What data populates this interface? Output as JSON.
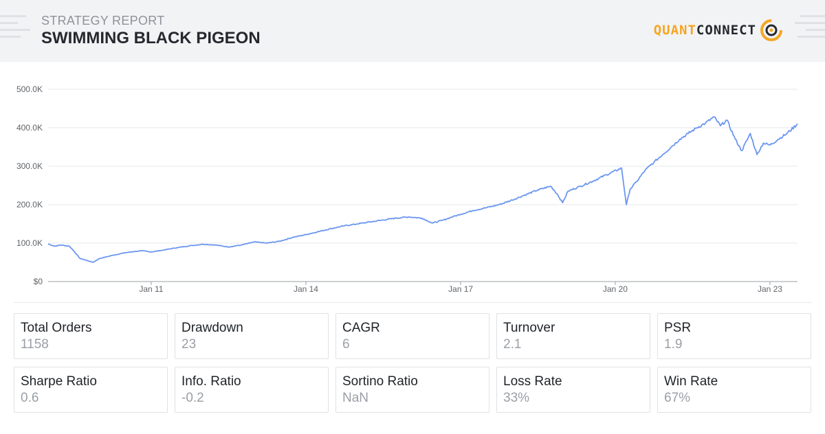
{
  "header": {
    "subtitle": "STRATEGY REPORT",
    "title": "SWIMMING BLACK PIGEON",
    "logo_quant": "QUANT",
    "logo_connect": "CONNECT",
    "accent_color": "#f5a623"
  },
  "chart_data": {
    "type": "line",
    "title": "",
    "xlabel": "",
    "ylabel": "",
    "x_range": [
      "2009-01-01",
      "2023-07-15"
    ],
    "ylim": [
      0,
      500000
    ],
    "y_ticks": [
      {
        "value": 0,
        "label": "$0"
      },
      {
        "value": 100000,
        "label": "100.0K"
      },
      {
        "value": 200000,
        "label": "200.0K"
      },
      {
        "value": 300000,
        "label": "300.0K"
      },
      {
        "value": 400000,
        "label": "400.0K"
      },
      {
        "value": 500000,
        "label": "500.0K"
      }
    ],
    "x_ticks": [
      {
        "date": "2011-01-01",
        "label": "Jan 11"
      },
      {
        "date": "2014-01-01",
        "label": "Jan 14"
      },
      {
        "date": "2017-01-01",
        "label": "Jan 17"
      },
      {
        "date": "2020-01-01",
        "label": "Jan 20"
      },
      {
        "date": "2023-01-01",
        "label": "Jan 23"
      }
    ],
    "grid": true,
    "series": [
      {
        "color": "#6b96ef",
        "points": [
          [
            "2009-01-01",
            98000
          ],
          [
            "2009-02-15",
            92000
          ],
          [
            "2009-04-01",
            95000
          ],
          [
            "2009-06-01",
            92000
          ],
          [
            "2009-07-01",
            80000
          ],
          [
            "2009-08-15",
            60000
          ],
          [
            "2009-10-01",
            55000
          ],
          [
            "2009-11-15",
            50000
          ],
          [
            "2010-01-01",
            60000
          ],
          [
            "2010-04-01",
            68000
          ],
          [
            "2010-07-01",
            75000
          ],
          [
            "2010-09-01",
            78000
          ],
          [
            "2010-11-01",
            80000
          ],
          [
            "2011-01-01",
            77000
          ],
          [
            "2011-04-01",
            82000
          ],
          [
            "2011-07-01",
            88000
          ],
          [
            "2011-10-01",
            93000
          ],
          [
            "2012-01-01",
            97000
          ],
          [
            "2012-04-01",
            95000
          ],
          [
            "2012-07-01",
            90000
          ],
          [
            "2012-10-01",
            95000
          ],
          [
            "2013-01-01",
            103000
          ],
          [
            "2013-04-01",
            100000
          ],
          [
            "2013-07-01",
            105000
          ],
          [
            "2013-10-01",
            115000
          ],
          [
            "2014-01-01",
            122000
          ],
          [
            "2014-04-01",
            130000
          ],
          [
            "2014-07-01",
            138000
          ],
          [
            "2014-10-01",
            145000
          ],
          [
            "2015-01-01",
            150000
          ],
          [
            "2015-04-01",
            155000
          ],
          [
            "2015-07-01",
            160000
          ],
          [
            "2015-10-01",
            165000
          ],
          [
            "2016-01-01",
            168000
          ],
          [
            "2016-04-01",
            165000
          ],
          [
            "2016-06-15",
            152000
          ],
          [
            "2016-09-01",
            160000
          ],
          [
            "2016-11-01",
            168000
          ],
          [
            "2017-01-01",
            175000
          ],
          [
            "2017-04-01",
            185000
          ],
          [
            "2017-07-01",
            192000
          ],
          [
            "2017-10-01",
            200000
          ],
          [
            "2018-01-01",
            212000
          ],
          [
            "2018-04-01",
            225000
          ],
          [
            "2018-07-01",
            238000
          ],
          [
            "2018-10-01",
            248000
          ],
          [
            "2018-11-15",
            228000
          ],
          [
            "2018-12-24",
            205000
          ],
          [
            "2019-02-01",
            235000
          ],
          [
            "2019-05-01",
            248000
          ],
          [
            "2019-08-01",
            262000
          ],
          [
            "2019-11-01",
            278000
          ],
          [
            "2020-02-15",
            295000
          ],
          [
            "2020-03-20",
            200000
          ],
          [
            "2020-04-15",
            240000
          ],
          [
            "2020-06-01",
            260000
          ],
          [
            "2020-08-01",
            290000
          ],
          [
            "2020-10-01",
            310000
          ],
          [
            "2020-12-01",
            330000
          ],
          [
            "2021-02-01",
            350000
          ],
          [
            "2021-04-01",
            370000
          ],
          [
            "2021-06-01",
            385000
          ],
          [
            "2021-08-01",
            400000
          ],
          [
            "2021-10-01",
            412000
          ],
          [
            "2021-12-01",
            428000
          ],
          [
            "2022-01-15",
            405000
          ],
          [
            "2022-03-01",
            420000
          ],
          [
            "2022-05-01",
            370000
          ],
          [
            "2022-06-15",
            340000
          ],
          [
            "2022-08-15",
            385000
          ],
          [
            "2022-10-01",
            330000
          ],
          [
            "2022-11-15",
            360000
          ],
          [
            "2023-01-01",
            355000
          ],
          [
            "2023-03-01",
            370000
          ],
          [
            "2023-05-01",
            385000
          ],
          [
            "2023-07-15",
            410000
          ]
        ]
      }
    ]
  },
  "stats": [
    {
      "label": "Total Orders",
      "value": "1158"
    },
    {
      "label": "Drawdown",
      "value": "23"
    },
    {
      "label": "CAGR",
      "value": "6"
    },
    {
      "label": "Turnover",
      "value": "2.1"
    },
    {
      "label": "PSR",
      "value": "1.9"
    },
    {
      "label": "Sharpe Ratio",
      "value": "0.6"
    },
    {
      "label": "Info. Ratio",
      "value": "-0.2"
    },
    {
      "label": "Sortino Ratio",
      "value": "NaN"
    },
    {
      "label": "Loss Rate",
      "value": "33%"
    },
    {
      "label": "Win Rate",
      "value": "67%"
    }
  ]
}
